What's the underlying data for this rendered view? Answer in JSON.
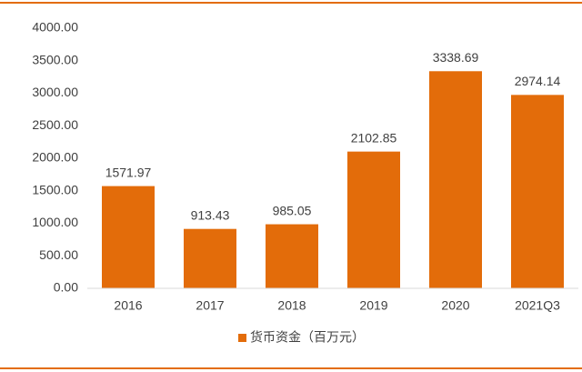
{
  "chart_data": {
    "type": "bar",
    "categories": [
      "2016",
      "2017",
      "2018",
      "2019",
      "2020",
      "2021Q3"
    ],
    "series": [
      {
        "name": "货币资金（百万元）",
        "color": "#e36c0a",
        "values": [
          1571.97,
          913.43,
          985.05,
          2102.85,
          3338.69,
          2974.14
        ]
      }
    ],
    "ylim": [
      0,
      4000
    ],
    "yticks": [
      {
        "value": 0,
        "label": "0.00"
      },
      {
        "value": 500,
        "label": "500.00"
      },
      {
        "value": 1000,
        "label": "1000.00"
      },
      {
        "value": 1500,
        "label": "1500.00"
      },
      {
        "value": 2000,
        "label": "2000.00"
      },
      {
        "value": 2500,
        "label": "2500.00"
      },
      {
        "value": 3000,
        "label": "3000.00"
      },
      {
        "value": 3500,
        "label": "3500.00"
      },
      {
        "value": 4000,
        "label": "4000.00"
      }
    ],
    "grid": false,
    "legend": "bottom"
  }
}
